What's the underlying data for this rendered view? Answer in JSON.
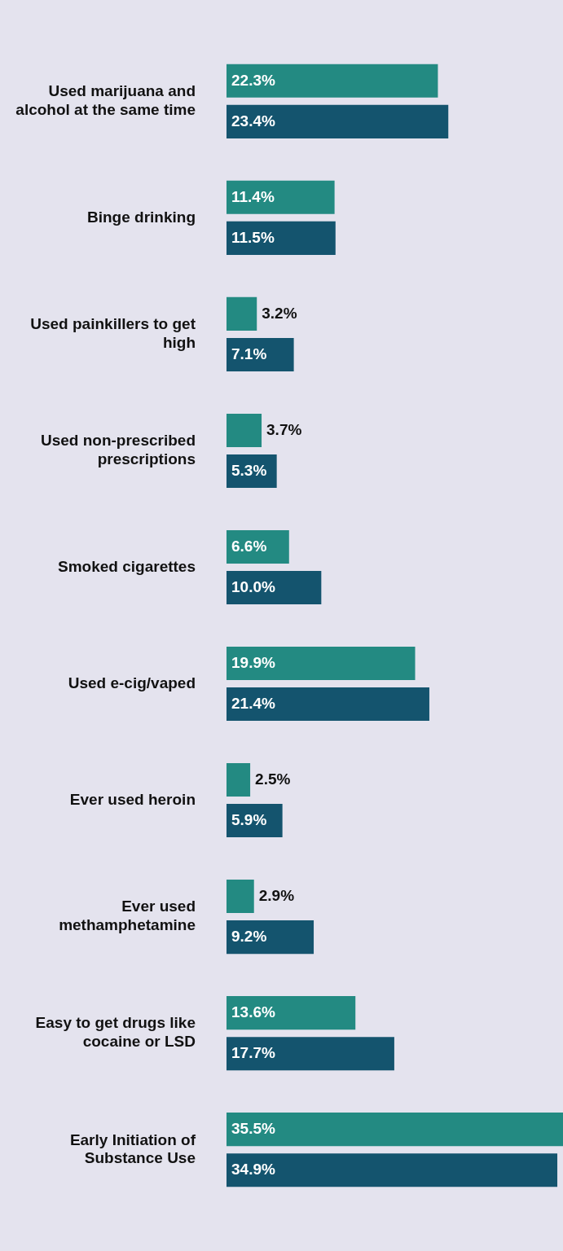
{
  "chart_data": {
    "type": "bar",
    "orientation": "horizontal",
    "grid": false,
    "legend": false,
    "categories": [
      "Used marijuana and alcohol at the same time",
      "Binge drinking",
      "Used painkillers to get high",
      "Used non-prescribed prescriptions",
      "Smoked cigarettes",
      "Used e-cig/vaped",
      "Ever used heroin",
      "Ever used methamphetamine",
      "Easy to get drugs like cocaine or LSD",
      "Early Initiation of Substance Use"
    ],
    "series": [
      {
        "color": "#238a82",
        "values": [
          22.3,
          11.4,
          3.2,
          3.7,
          6.6,
          19.9,
          2.5,
          2.9,
          13.6,
          35.5
        ],
        "value_labels": [
          "22.3%",
          "11.4%",
          "3.2%",
          "3.7%",
          "6.6%",
          "19.9%",
          "2.5%",
          "2.9%",
          "13.6%",
          "35.5%"
        ]
      },
      {
        "color": "#14546e",
        "values": [
          23.4,
          11.5,
          7.1,
          5.3,
          10.0,
          21.4,
          5.9,
          9.2,
          17.7,
          34.9
        ],
        "value_labels": [
          "23.4%",
          "11.5%",
          "7.1%",
          "5.3%",
          "10.0%",
          "21.4%",
          "5.9%",
          "9.2%",
          "17.7%",
          "34.9%"
        ]
      }
    ]
  }
}
